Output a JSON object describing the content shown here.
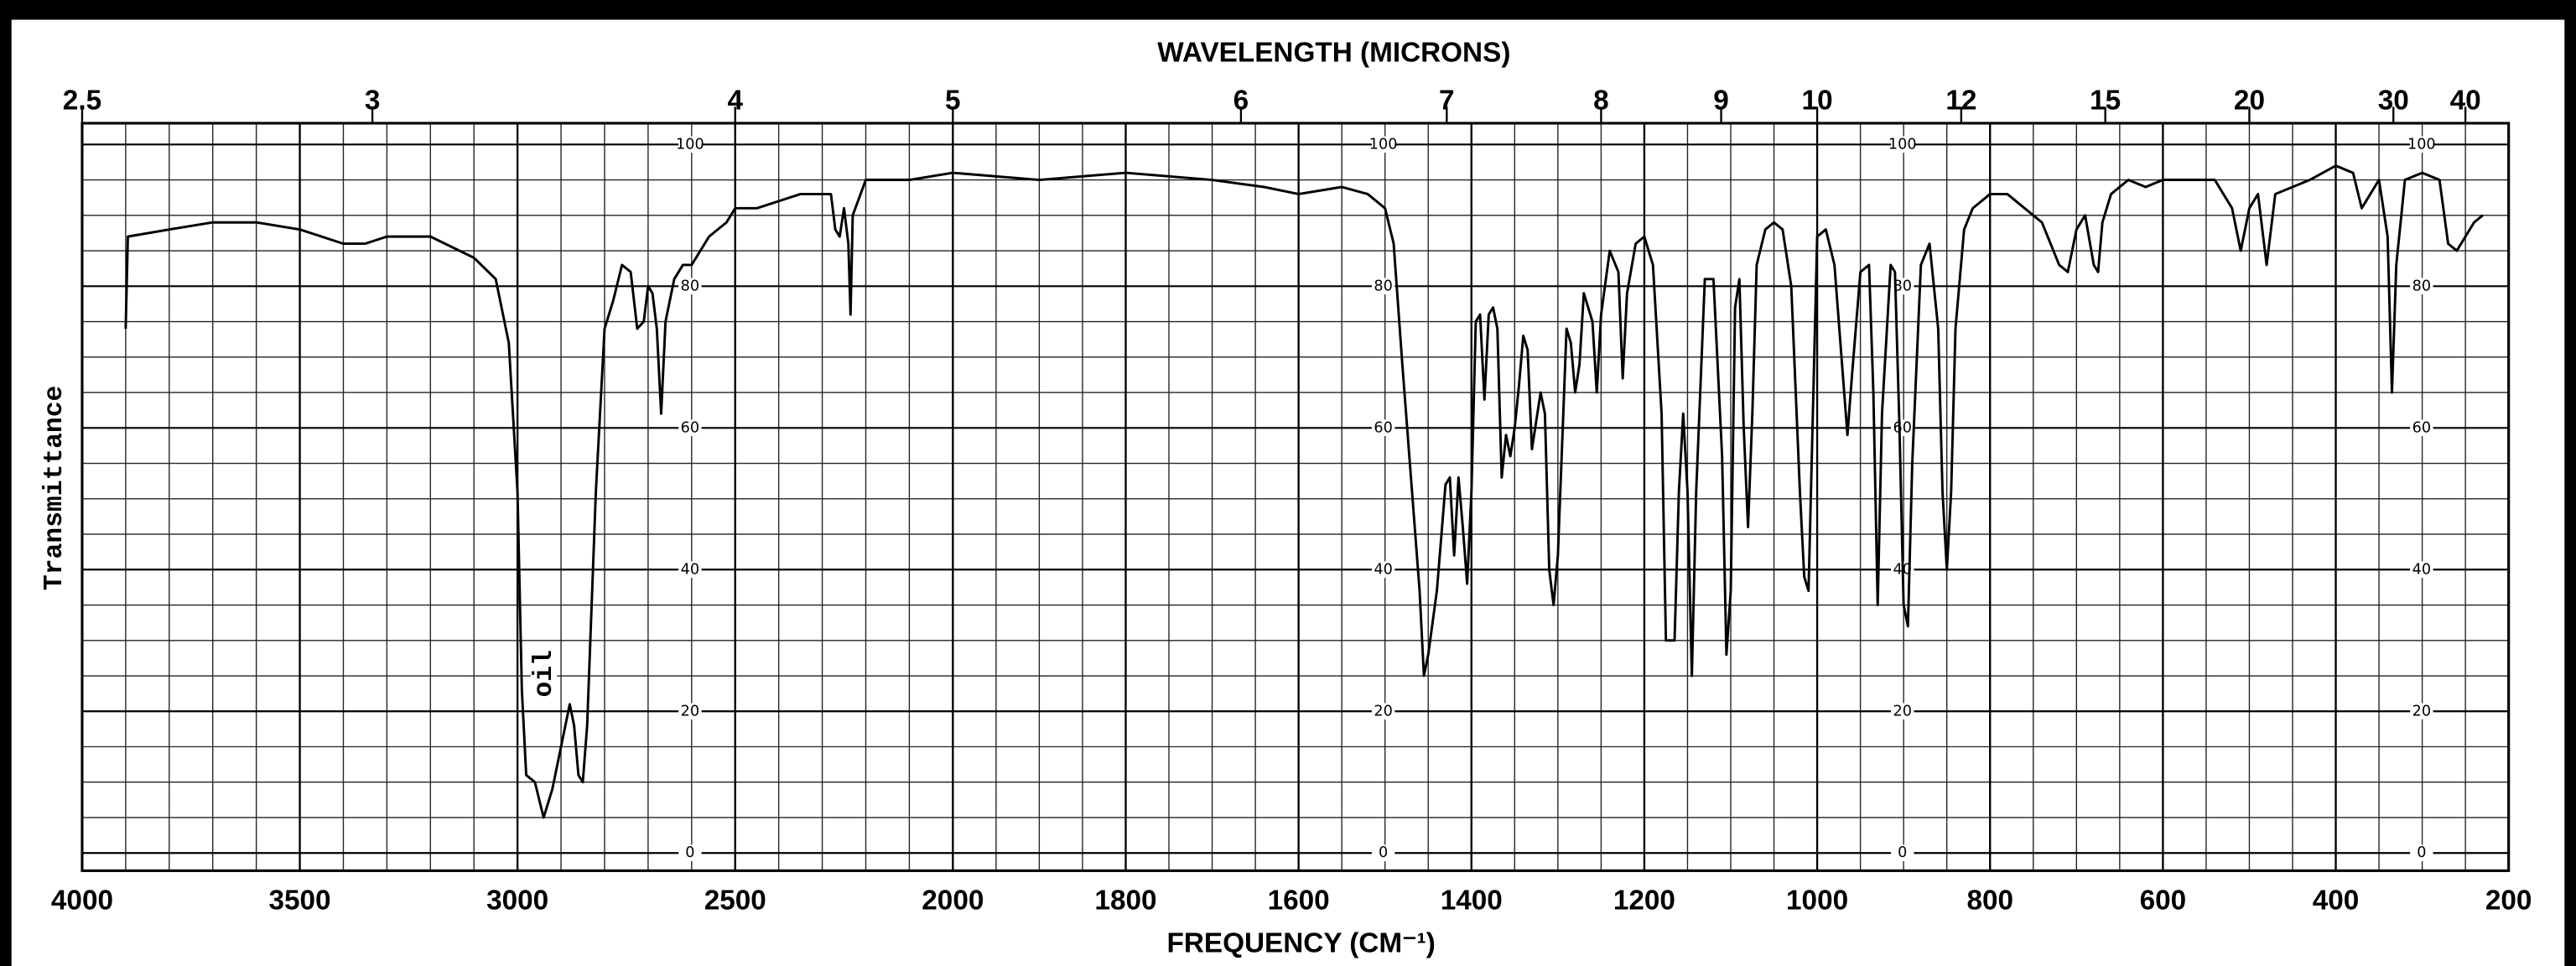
{
  "chart_data": {
    "type": "line",
    "title": "WAVELENGTH (MICRONS)",
    "xlabel": "FREQUENCY (CM⁻¹)",
    "ylabel": "Transmittance",
    "annotation": "oil",
    "color": "#000000",
    "grid": true,
    "xlim": [
      4000,
      200
    ],
    "xticks": [
      4000,
      3500,
      3000,
      2500,
      2000,
      1800,
      1600,
      1400,
      1200,
      1000,
      800,
      600,
      400,
      200
    ],
    "x2ticks": [
      2.5,
      3,
      4,
      5,
      6,
      7,
      8,
      9,
      10,
      12,
      15,
      20,
      30,
      40
    ],
    "ylim": [
      -2.5,
      103
    ],
    "yticks": [
      0,
      20,
      40,
      60,
      80,
      100
    ],
    "x": [
      3900,
      3895,
      3800,
      3700,
      3600,
      3500,
      3400,
      3350,
      3300,
      3200,
      3100,
      3050,
      3020,
      3000,
      2990,
      2980,
      2960,
      2940,
      2920,
      2900,
      2880,
      2870,
      2860,
      2850,
      2840,
      2820,
      2800,
      2780,
      2760,
      2740,
      2725,
      2710,
      2700,
      2690,
      2680,
      2670,
      2660,
      2640,
      2620,
      2600,
      2560,
      2520,
      2500,
      2450,
      2400,
      2350,
      2300,
      2280,
      2270,
      2260,
      2250,
      2240,
      2235,
      2230,
      2200,
      2100,
      2000,
      1900,
      1800,
      1700,
      1640,
      1600,
      1550,
      1520,
      1500,
      1490,
      1480,
      1470,
      1460,
      1455,
      1450,
      1440,
      1430,
      1425,
      1420,
      1415,
      1410,
      1405,
      1400,
      1395,
      1390,
      1385,
      1380,
      1375,
      1370,
      1365,
      1360,
      1355,
      1350,
      1345,
      1340,
      1335,
      1330,
      1325,
      1320,
      1315,
      1310,
      1305,
      1300,
      1290,
      1285,
      1280,
      1275,
      1270,
      1260,
      1255,
      1250,
      1240,
      1230,
      1225,
      1220,
      1210,
      1200,
      1190,
      1180,
      1175,
      1165,
      1160,
      1155,
      1150,
      1145,
      1140,
      1130,
      1120,
      1110,
      1105,
      1100,
      1095,
      1090,
      1085,
      1080,
      1075,
      1070,
      1060,
      1050,
      1040,
      1030,
      1020,
      1015,
      1010,
      1005,
      1000,
      990,
      980,
      970,
      965,
      960,
      950,
      940,
      935,
      930,
      925,
      915,
      910,
      905,
      900,
      895,
      890,
      880,
      870,
      860,
      855,
      850,
      845,
      840,
      830,
      820,
      800,
      780,
      760,
      740,
      720,
      710,
      700,
      690,
      680,
      675,
      670,
      660,
      640,
      620,
      600,
      580,
      560,
      540,
      520,
      510,
      500,
      490,
      480,
      470,
      450,
      430,
      400,
      380,
      370,
      360,
      350,
      340,
      335,
      330,
      320,
      300,
      280,
      270,
      260,
      250,
      240,
      230
    ],
    "values": [
      74,
      87,
      88,
      89,
      89,
      88,
      86,
      86,
      87,
      87,
      84,
      81,
      72,
      51,
      23,
      11,
      10,
      5,
      9,
      15,
      21,
      18,
      11,
      10,
      18,
      51,
      74,
      78,
      83,
      82,
      74,
      75,
      80,
      79,
      74,
      62,
      75,
      81,
      83,
      83,
      87,
      89,
      91,
      91,
      92,
      93,
      93,
      93,
      88,
      87,
      91,
      86,
      76,
      90,
      95,
      95,
      96,
      95,
      96,
      95,
      94,
      93,
      94,
      93,
      91,
      86,
      69,
      53,
      37,
      25,
      28,
      37,
      52,
      53,
      42,
      53,
      46,
      38,
      51,
      75,
      76,
      64,
      76,
      77,
      74,
      53,
      59,
      56,
      60,
      66,
      73,
      71,
      57,
      61,
      65,
      62,
      40,
      35,
      42,
      74,
      72,
      65,
      69,
      79,
      75,
      65,
      76,
      85,
      82,
      67,
      79,
      86,
      87,
      83,
      62,
      30,
      30,
      51,
      62,
      51,
      25,
      51,
      81,
      81,
      56,
      28,
      37,
      77,
      81,
      60,
      46,
      62,
      83,
      88,
      89,
      88,
      80,
      51,
      39,
      37,
      62,
      87,
      88,
      83,
      67,
      59,
      67,
      82,
      83,
      65,
      35,
      62,
      83,
      82,
      61,
      35,
      32,
      55,
      83,
      86,
      74,
      51,
      40,
      51,
      74,
      88,
      91,
      93,
      93,
      91,
      89,
      83,
      82,
      88,
      90,
      83,
      82,
      89,
      93,
      95,
      94,
      95,
      95,
      95,
      95,
      91,
      85,
      91,
      93,
      83,
      93,
      94,
      95,
      97,
      96,
      91,
      93,
      95,
      87,
      65,
      83,
      95,
      96,
      95,
      86,
      85,
      87,
      89,
      90
    ]
  }
}
